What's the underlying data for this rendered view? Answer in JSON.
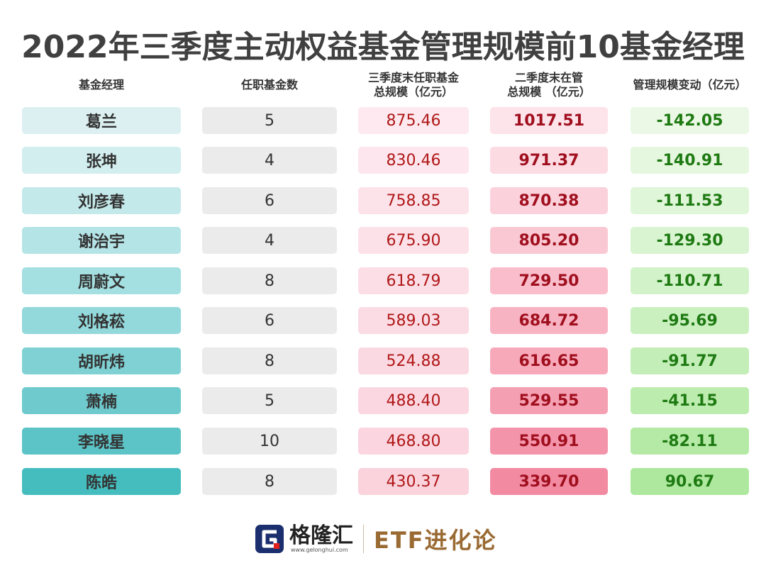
{
  "title": "2022年三季度主动权益基金管理规模前10基金经理",
  "headers": {
    "name": "基金经理",
    "count": "任职基金数",
    "q3_line1": "三季度末任职基金",
    "q3_line2": "总规模（亿元）",
    "q2_line1": "二季度末在管",
    "q2_line2": "总规模 （亿元）",
    "change": "管理规模变动（亿元）"
  },
  "rows": [
    {
      "name": "葛兰",
      "count": "5",
      "q3": "875.46",
      "q2": "1017.51",
      "change": "-142.05"
    },
    {
      "name": "张坤",
      "count": "4",
      "q3": "830.46",
      "q2": "971.37",
      "change": "-140.91"
    },
    {
      "name": "刘彦春",
      "count": "6",
      "q3": "758.85",
      "q2": "870.38",
      "change": "-111.53"
    },
    {
      "name": "谢治宇",
      "count": "4",
      "q3": "675.90",
      "q2": "805.20",
      "change": "-129.30"
    },
    {
      "name": "周蔚文",
      "count": "8",
      "q3": "618.79",
      "q2": "729.50",
      "change": "-110.71"
    },
    {
      "name": "刘格菘",
      "count": "6",
      "q3": "589.03",
      "q2": "684.72",
      "change": "-95.69"
    },
    {
      "name": "胡昕炜",
      "count": "8",
      "q3": "524.88",
      "q2": "616.65",
      "change": "-91.77"
    },
    {
      "name": "萧楠",
      "count": "5",
      "q3": "488.40",
      "q2": "529.55",
      "change": "-41.15"
    },
    {
      "name": "李晓星",
      "count": "10",
      "q3": "468.80",
      "q2": "550.91",
      "change": "-82.11"
    },
    {
      "name": "陈皓",
      "count": "8",
      "q3": "430.37",
      "q2": "339.70",
      "change": "90.67"
    }
  ],
  "colors": {
    "name": [
      "#dcf0f1",
      "#d2eeef",
      "#c4e9eb",
      "#b5e4e6",
      "#a4dfe1",
      "#93d8db",
      "#80d1d4",
      "#6ecacd",
      "#5cc3c6",
      "#45bdbf"
    ],
    "q3": [
      "#fde9ef",
      "#fde6ed",
      "#fce3ea",
      "#fce1e8",
      "#fcdee6",
      "#fbdbe4",
      "#fbd9e2",
      "#fbd7e1",
      "#fbd5df",
      "#fad3dd"
    ],
    "q2": [
      "#fde3ea",
      "#fcdbe3",
      "#fbd1db",
      "#fac8d3",
      "#f9bdcb",
      "#f8b3c2",
      "#f7a9ba",
      "#f59fb2",
      "#f494aa",
      "#f28aa1"
    ],
    "change": [
      "#ebf8e6",
      "#e6f7e0",
      "#e0f6d9",
      "#d9f4d1",
      "#d2f2c9",
      "#cbf0c0",
      "#c3eeb7",
      "#bcecae",
      "#b4eaa5",
      "#aee89e"
    ]
  },
  "brand": {
    "name": "格隆汇",
    "url": "www.gelonghui.com",
    "product": "ETF进化论"
  }
}
